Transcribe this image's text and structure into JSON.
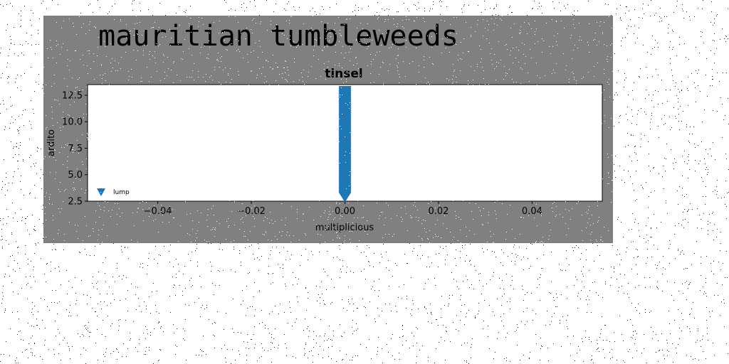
{
  "figure": {
    "suptitle": "mauritian tumbleweeds",
    "background": "#808080"
  },
  "chart_data": {
    "type": "scatter",
    "title": "tinsel",
    "xlabel": "multiplicious",
    "ylabel": "ardito",
    "xlim": [
      -0.055,
      0.055
    ],
    "ylim": [
      2.5,
      13.5
    ],
    "xticks": [
      -0.04,
      -0.02,
      0.0,
      0.02,
      0.04
    ],
    "xtick_labels": [
      "−0.04",
      "−0.02",
      "0.00",
      "0.02",
      "0.04"
    ],
    "yticks": [
      2.5,
      5.0,
      7.5,
      10.0,
      12.5
    ],
    "ytick_labels": [
      "2.5",
      "5.0",
      "7.5",
      "10.0",
      "12.5"
    ],
    "grid": false,
    "legend_position": "lower-left",
    "series": [
      {
        "name": "lump",
        "marker": "triangle-down",
        "color": "#1f77b4",
        "x": [
          0,
          0,
          0,
          0,
          0,
          0,
          0,
          0,
          0,
          0,
          0,
          0,
          0,
          0,
          0,
          0,
          0,
          0,
          0,
          0,
          0,
          0,
          0,
          0,
          0,
          0,
          0,
          0,
          0,
          0,
          0,
          0,
          0,
          0,
          0,
          0,
          0,
          0,
          0,
          0,
          0,
          0,
          0,
          0,
          0,
          0,
          0,
          0,
          0,
          0,
          0,
          0,
          0,
          0,
          0,
          0,
          0,
          0,
          0,
          0,
          0,
          0,
          0,
          0,
          0,
          0,
          0,
          0,
          0,
          0,
          0,
          0,
          0,
          0,
          0,
          0,
          0,
          0,
          0,
          0,
          0,
          0,
          0,
          0,
          0,
          0,
          0,
          0,
          0,
          0,
          0,
          0,
          0,
          0,
          0,
          0,
          0,
          0,
          0,
          0,
          0
        ],
        "y": [
          3.0,
          3.1,
          3.2,
          3.3,
          3.4,
          3.5,
          3.6,
          3.7,
          3.8,
          3.9,
          4.0,
          4.1,
          4.2,
          4.3,
          4.4,
          4.5,
          4.6,
          4.7,
          4.8,
          4.9,
          5.0,
          5.1,
          5.2,
          5.3,
          5.4,
          5.5,
          5.6,
          5.7,
          5.8,
          5.9,
          6.0,
          6.1,
          6.2,
          6.3,
          6.4,
          6.5,
          6.6,
          6.7,
          6.8,
          6.9,
          7.0,
          7.1,
          7.2,
          7.3,
          7.4,
          7.5,
          7.6,
          7.7,
          7.8,
          7.9,
          8.0,
          8.1,
          8.2,
          8.3,
          8.4,
          8.5,
          8.6,
          8.7,
          8.8,
          8.9,
          9.0,
          9.1,
          9.2,
          9.3,
          9.4,
          9.5,
          9.6,
          9.7,
          9.8,
          9.9,
          10.0,
          10.1,
          10.2,
          10.3,
          10.4,
          10.5,
          10.6,
          10.7,
          10.8,
          10.9,
          11.0,
          11.1,
          11.2,
          11.3,
          11.4,
          11.5,
          11.6,
          11.7,
          11.8,
          11.9,
          12.0,
          12.1,
          12.2,
          12.3,
          12.4,
          12.5,
          12.6,
          12.7,
          12.8,
          12.9,
          13.0
        ]
      }
    ]
  }
}
